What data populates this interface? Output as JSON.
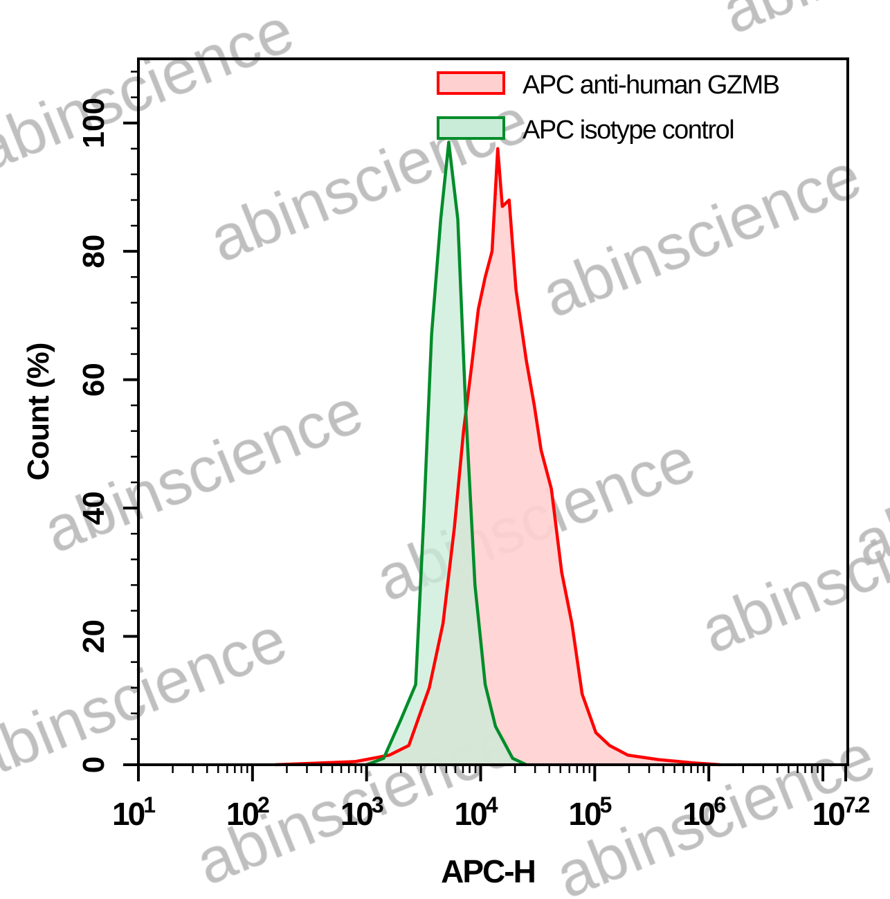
{
  "chart_data": {
    "type": "area",
    "title": "",
    "xlabel": "APC-H",
    "ylabel": "Count (%)",
    "x_scale": "log10",
    "xlim_log10": [
      1,
      7.2
    ],
    "ylim": [
      0,
      110
    ],
    "x_ticks": [
      {
        "base": "10",
        "exp": "1",
        "log10": 1
      },
      {
        "base": "10",
        "exp": "2",
        "log10": 2
      },
      {
        "base": "10",
        "exp": "3",
        "log10": 3
      },
      {
        "base": "10",
        "exp": "4",
        "log10": 4
      },
      {
        "base": "10",
        "exp": "5",
        "log10": 5
      },
      {
        "base": "10",
        "exp": "6",
        "log10": 6
      },
      {
        "base": "10",
        "exp": "7.2",
        "log10": 7.2
      }
    ],
    "y_ticks": [
      "0",
      "20",
      "40",
      "60",
      "80",
      "100"
    ],
    "grid": false,
    "legend_position": "top-right",
    "series": [
      {
        "name": "APC anti-human GZMB",
        "stroke": "#ff0000",
        "fill": "#ffd0d0",
        "points_log10x_y": [
          [
            2.2,
            0
          ],
          [
            2.9,
            0.5
          ],
          [
            3.2,
            1.5
          ],
          [
            3.37,
            3
          ],
          [
            3.55,
            12
          ],
          [
            3.67,
            22
          ],
          [
            3.77,
            37
          ],
          [
            3.85,
            52
          ],
          [
            3.92,
            62
          ],
          [
            3.98,
            71
          ],
          [
            4.04,
            76
          ],
          [
            4.1,
            80
          ],
          [
            4.15,
            96
          ],
          [
            4.19,
            87
          ],
          [
            4.25,
            88
          ],
          [
            4.31,
            74
          ],
          [
            4.4,
            63
          ],
          [
            4.47,
            56
          ],
          [
            4.53,
            49
          ],
          [
            4.62,
            43
          ],
          [
            4.71,
            30
          ],
          [
            4.8,
            22
          ],
          [
            4.89,
            11
          ],
          [
            5.01,
            5
          ],
          [
            5.13,
            3
          ],
          [
            5.29,
            1.5
          ],
          [
            5.56,
            0.8
          ],
          [
            5.86,
            0.3
          ],
          [
            6.1,
            0
          ]
        ]
      },
      {
        "name": "APC isotype control",
        "stroke": "#008c2a",
        "fill": "#c8ecd8",
        "points_log10x_y": [
          [
            3.0,
            0
          ],
          [
            3.15,
            1
          ],
          [
            3.3,
            7
          ],
          [
            3.43,
            12.5
          ],
          [
            3.5,
            38
          ],
          [
            3.57,
            67
          ],
          [
            3.65,
            85
          ],
          [
            3.72,
            97
          ],
          [
            3.8,
            85
          ],
          [
            3.87,
            55
          ],
          [
            3.95,
            28
          ],
          [
            4.04,
            12.5
          ],
          [
            4.13,
            6
          ],
          [
            4.28,
            1
          ],
          [
            4.4,
            0
          ]
        ]
      }
    ]
  },
  "watermark": "abinscience"
}
